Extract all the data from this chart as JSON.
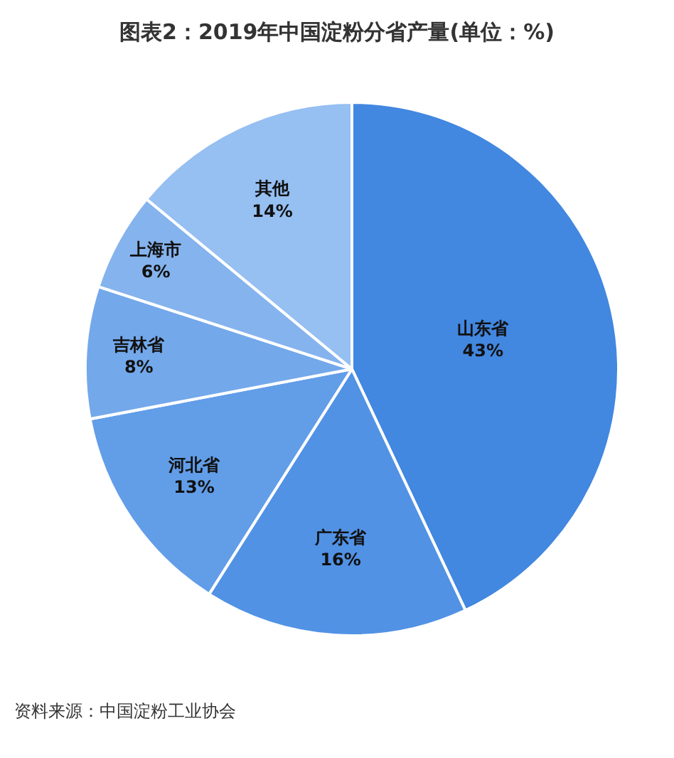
{
  "chart_data": {
    "type": "pie",
    "title": "图表2：2019年中国淀粉分省产量(单位：%)",
    "categories": [
      "山东省",
      "广东省",
      "河北省",
      "吉林省",
      "上海市",
      "其他"
    ],
    "values": [
      43,
      16,
      13,
      8,
      6,
      14
    ],
    "value_labels": [
      "43%",
      "16%",
      "13%",
      "8%",
      "6%",
      "14%"
    ],
    "colors": [
      "#4287e0",
      "#5192e5",
      "#629de8",
      "#73a8eb",
      "#85b3ed",
      "#96bff2"
    ],
    "legend": false,
    "annotations": [
      "资料来源：中国淀粉工业协会"
    ]
  }
}
